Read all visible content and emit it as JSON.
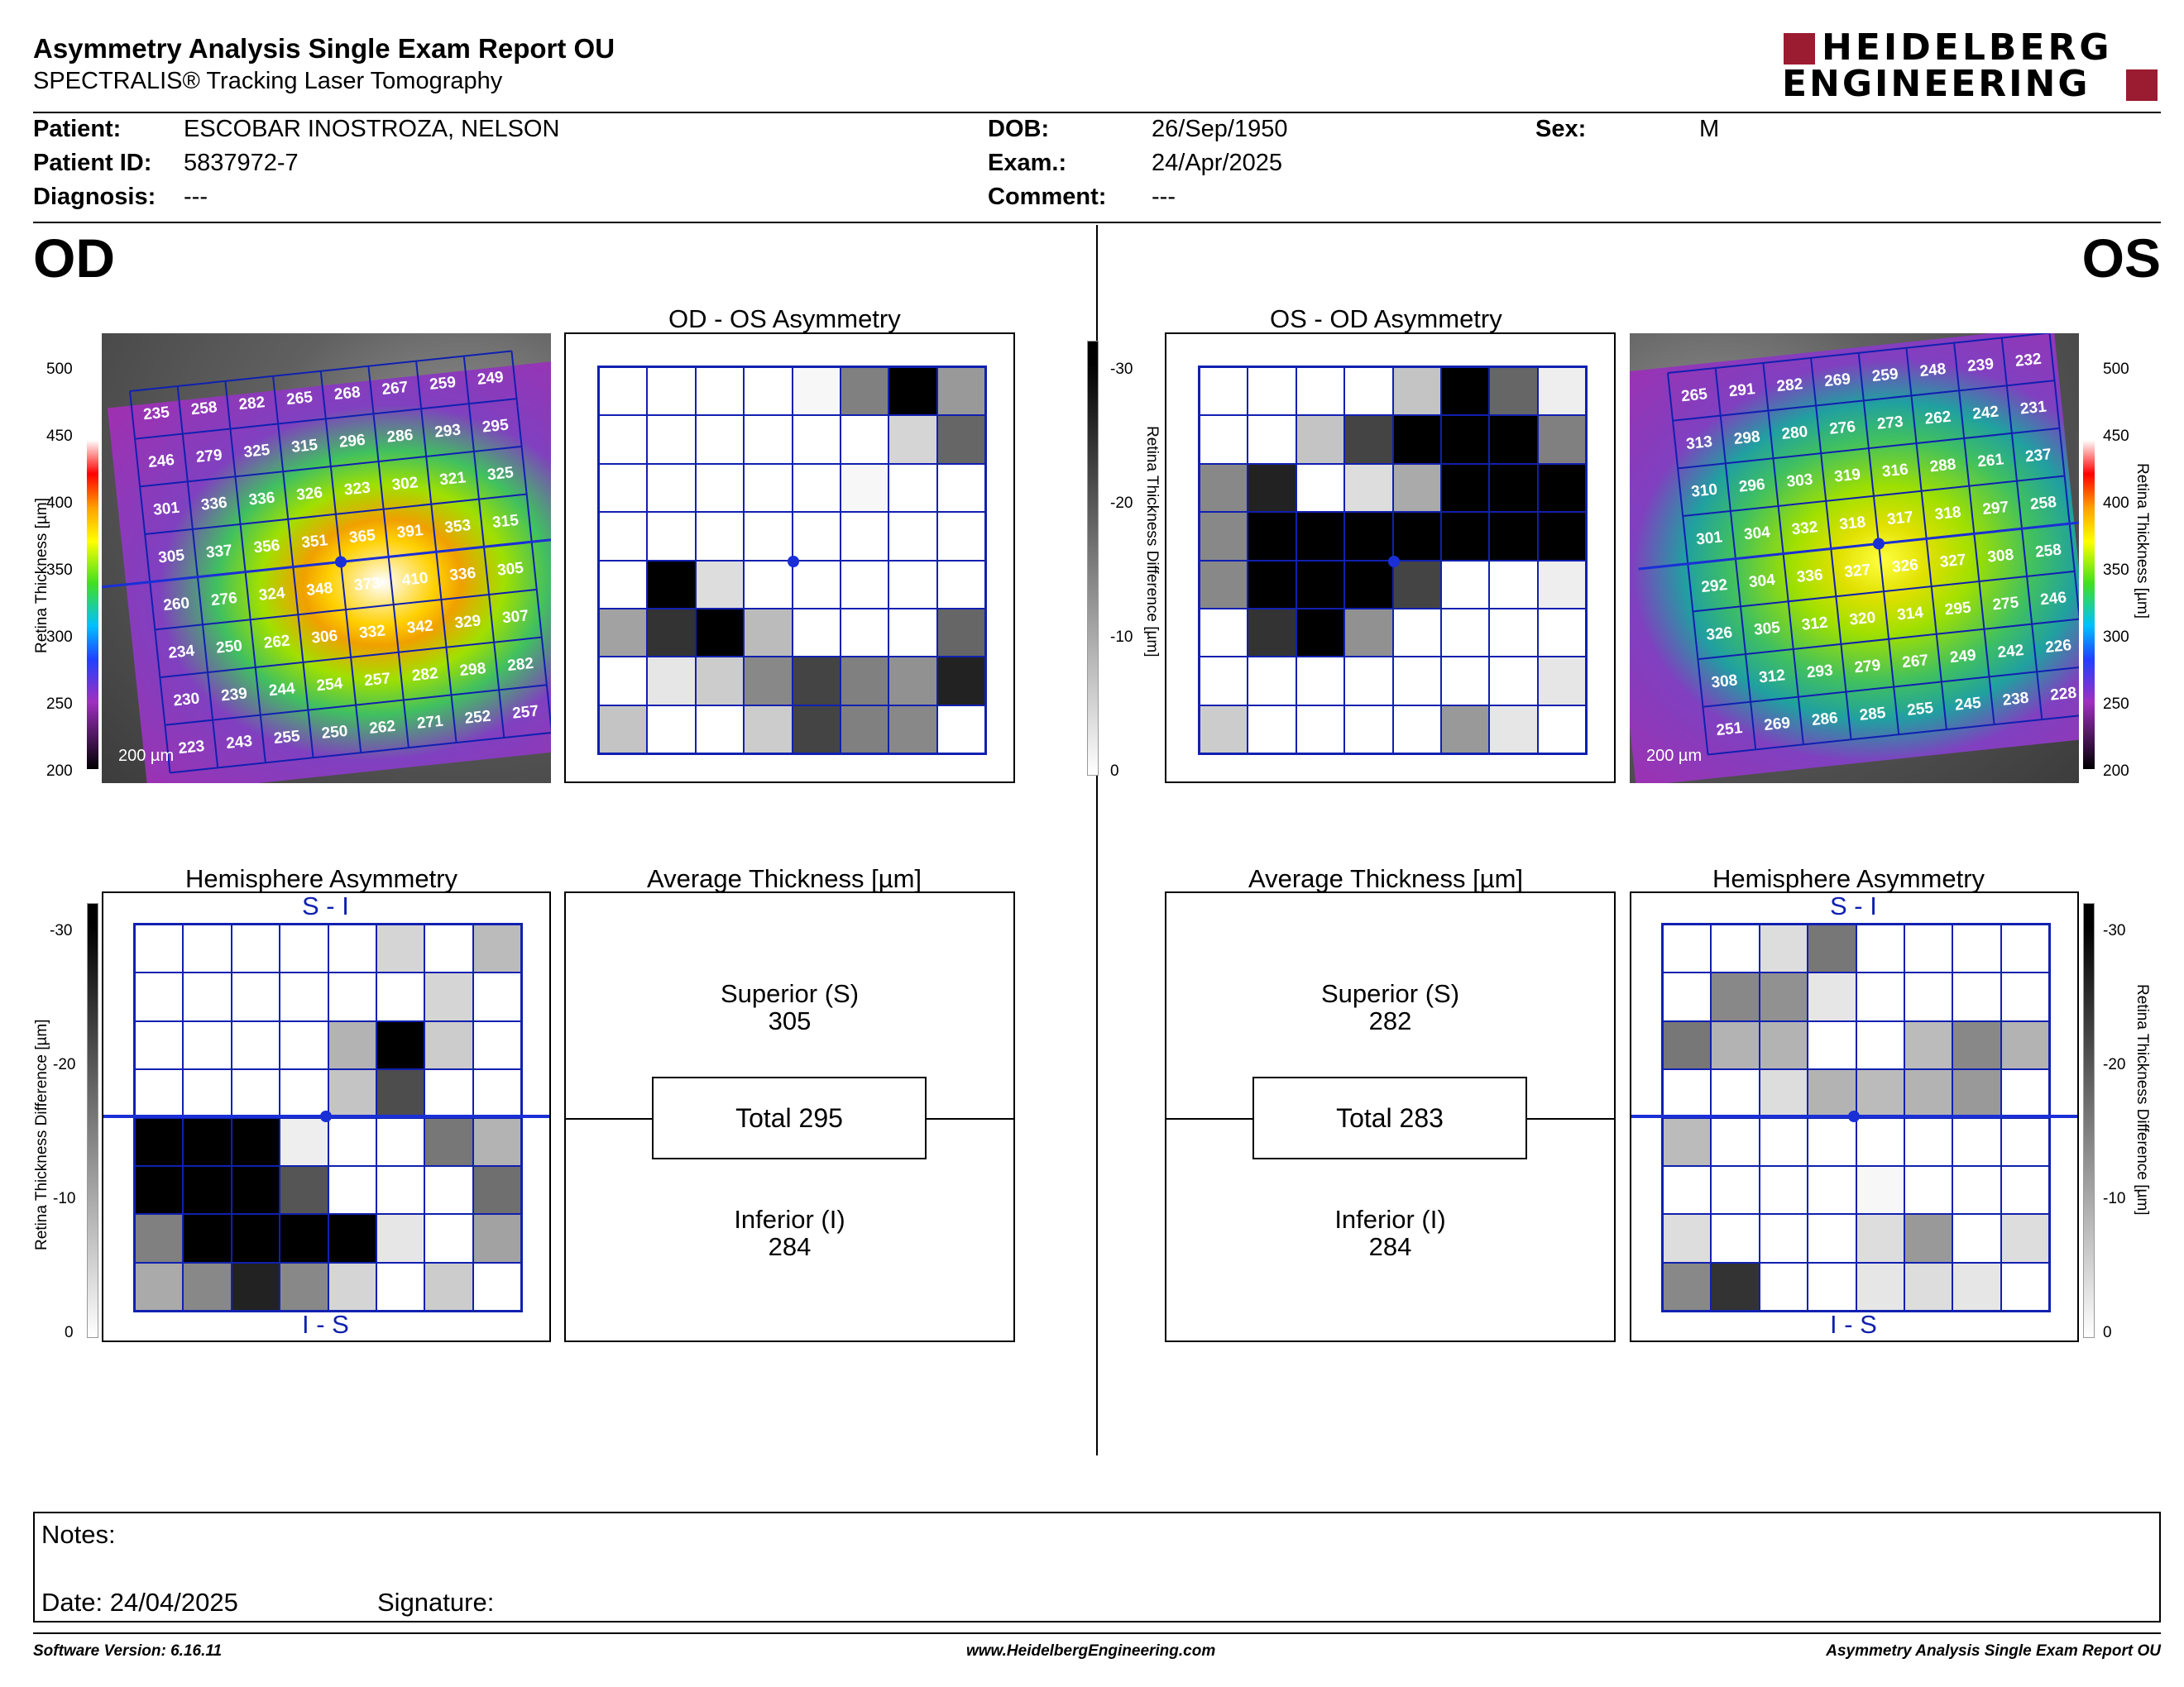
{
  "header": {
    "title": "Asymmetry Analysis Single Exam Report OU",
    "subtitle": "SPECTRALIS® Tracking Laser Tomography",
    "logo_line1": "HEIDELBERG",
    "logo_line2": "ENGINEERING"
  },
  "patient": {
    "patient_label": "Patient:",
    "patient_value": "ESCOBAR INOSTROZA, NELSON",
    "id_label": "Patient ID:",
    "id_value": "5837972-7",
    "diagnosis_label": "Diagnosis:",
    "diagnosis_value": "---",
    "dob_label": "DOB:",
    "dob_value": "26/Sep/1950",
    "exam_label": "Exam.:",
    "exam_value": "24/Apr/2025",
    "comment_label": "Comment:",
    "comment_value": "---",
    "sex_label": "Sex:",
    "sex_value": "M"
  },
  "eyes": {
    "od": "OD",
    "os": "OS"
  },
  "titles": {
    "od_os": "OD - OS Asymmetry",
    "os_od": "OS - OD Asymmetry",
    "hemi": "Hemisphere Asymmetry",
    "avg": "Average Thickness [µm]",
    "si": "S - I",
    "is": "I - S"
  },
  "axes": {
    "thickness_label": "Retina  Thickness [µm]",
    "thickness_ticks": [
      "500",
      "450",
      "400",
      "350",
      "300",
      "250",
      "200"
    ],
    "diff_label": "Retina Thickness Difference [µm]",
    "diff_ticks": [
      "-30",
      "-20",
      "-10",
      "0"
    ],
    "scale_bar": "200 µm"
  },
  "od_thickness": [
    [
      235,
      258,
      282,
      265,
      268,
      267,
      259,
      249
    ],
    [
      246,
      279,
      325,
      315,
      296,
      286,
      293,
      295
    ],
    [
      301,
      336,
      336,
      326,
      323,
      302,
      321,
      325
    ],
    [
      305,
      337,
      356,
      351,
      365,
      391,
      353,
      315
    ],
    [
      260,
      276,
      324,
      348,
      373,
      410,
      336,
      305
    ],
    [
      234,
      250,
      262,
      306,
      332,
      342,
      329,
      307
    ],
    [
      230,
      239,
      244,
      254,
      257,
      282,
      298,
      282
    ],
    [
      223,
      243,
      255,
      250,
      262,
      271,
      252,
      257
    ]
  ],
  "os_thickness": [
    [
      265,
      291,
      282,
      269,
      259,
      248,
      239,
      232
    ],
    [
      313,
      298,
      280,
      276,
      273,
      262,
      242,
      231
    ],
    [
      310,
      296,
      303,
      319,
      316,
      288,
      261,
      237
    ],
    [
      301,
      304,
      332,
      318,
      317,
      318,
      297,
      258
    ],
    [
      292,
      304,
      336,
      327,
      326,
      327,
      308,
      258
    ],
    [
      326,
      305,
      312,
      320,
      314,
      295,
      275,
      246
    ],
    [
      308,
      312,
      293,
      279,
      267,
      249,
      242,
      226
    ],
    [
      251,
      269,
      286,
      285,
      255,
      245,
      238,
      228
    ]
  ],
  "od_os_asym": [
    [
      0,
      0,
      0,
      0,
      1,
      15,
      30,
      12
    ],
    [
      0,
      0,
      0,
      0,
      0,
      0,
      5,
      18
    ],
    [
      0,
      0,
      0,
      0,
      0,
      1,
      0,
      0
    ],
    [
      0,
      0,
      0,
      0,
      0,
      0,
      0,
      0
    ],
    [
      0,
      30,
      4,
      0,
      0,
      0,
      0,
      0
    ],
    [
      11,
      24,
      30,
      8,
      0,
      0,
      0,
      18
    ],
    [
      0,
      3,
      6,
      14,
      22,
      15,
      13,
      26
    ],
    [
      7,
      0,
      0,
      6,
      22,
      15,
      14,
      0
    ]
  ],
  "os_od_asym": [
    [
      0,
      0,
      0,
      0,
      7,
      30,
      18,
      2
    ],
    [
      0,
      0,
      7,
      22,
      30,
      30,
      30,
      15
    ],
    [
      14,
      26,
      0,
      4,
      10,
      30,
      30,
      30
    ],
    [
      14,
      30,
      30,
      30,
      30,
      30,
      30,
      30
    ],
    [
      14,
      30,
      30,
      30,
      22,
      0,
      0,
      2
    ],
    [
      0,
      24,
      30,
      13,
      0,
      0,
      0,
      0
    ],
    [
      0,
      0,
      0,
      0,
      0,
      0,
      0,
      3
    ],
    [
      6,
      0,
      0,
      0,
      0,
      12,
      3,
      0
    ]
  ],
  "od_hemi": [
    [
      0,
      0,
      0,
      0,
      0,
      5,
      0,
      8
    ],
    [
      0,
      0,
      0,
      0,
      0,
      0,
      5,
      0
    ],
    [
      0,
      0,
      0,
      0,
      9,
      30,
      6,
      0
    ],
    [
      0,
      0,
      0,
      0,
      7,
      21,
      0,
      0
    ],
    [
      30,
      30,
      30,
      2,
      0,
      0,
      16,
      9
    ],
    [
      30,
      30,
      30,
      20,
      0,
      0,
      0,
      17
    ],
    [
      15,
      30,
      30,
      30,
      30,
      3,
      0,
      11
    ],
    [
      10,
      14,
      26,
      14,
      5,
      0,
      6,
      0
    ]
  ],
  "os_hemi": [
    [
      0,
      0,
      4,
      16,
      0,
      0,
      0,
      0
    ],
    [
      0,
      14,
      13,
      3,
      0,
      0,
      0,
      0
    ],
    [
      16,
      9,
      9,
      0,
      0,
      8,
      14,
      9
    ],
    [
      0,
      0,
      4,
      9,
      8,
      9,
      12,
      0
    ],
    [
      8,
      0,
      0,
      0,
      0,
      0,
      0,
      0
    ],
    [
      0,
      0,
      0,
      0,
      1,
      0,
      0,
      0
    ],
    [
      4,
      0,
      0,
      0,
      4,
      12,
      0,
      4
    ],
    [
      14,
      24,
      0,
      0,
      3,
      4,
      3,
      0
    ]
  ],
  "od_avg": {
    "superior_label": "Superior (S)",
    "superior_value": "305",
    "total": "Total 295",
    "inferior_label": "Inferior (I)",
    "inferior_value": "284"
  },
  "os_avg": {
    "superior_label": "Superior (S)",
    "superior_value": "282",
    "total": "Total 283",
    "inferior_label": "Inferior (I)",
    "inferior_value": "284"
  },
  "notes": {
    "label": "Notes:",
    "date": "Date: 24/04/2025",
    "signature": "Signature:"
  },
  "footer": {
    "software": "Software Version: 6.16.11",
    "url": "www.HeidelbergEngineering.com",
    "report": "Asymmetry Analysis Single Exam Report OU"
  },
  "colors": {
    "grid": "#1020b0",
    "logo_red": "#9b1b30",
    "foveal_line": "#1a2fd6"
  }
}
